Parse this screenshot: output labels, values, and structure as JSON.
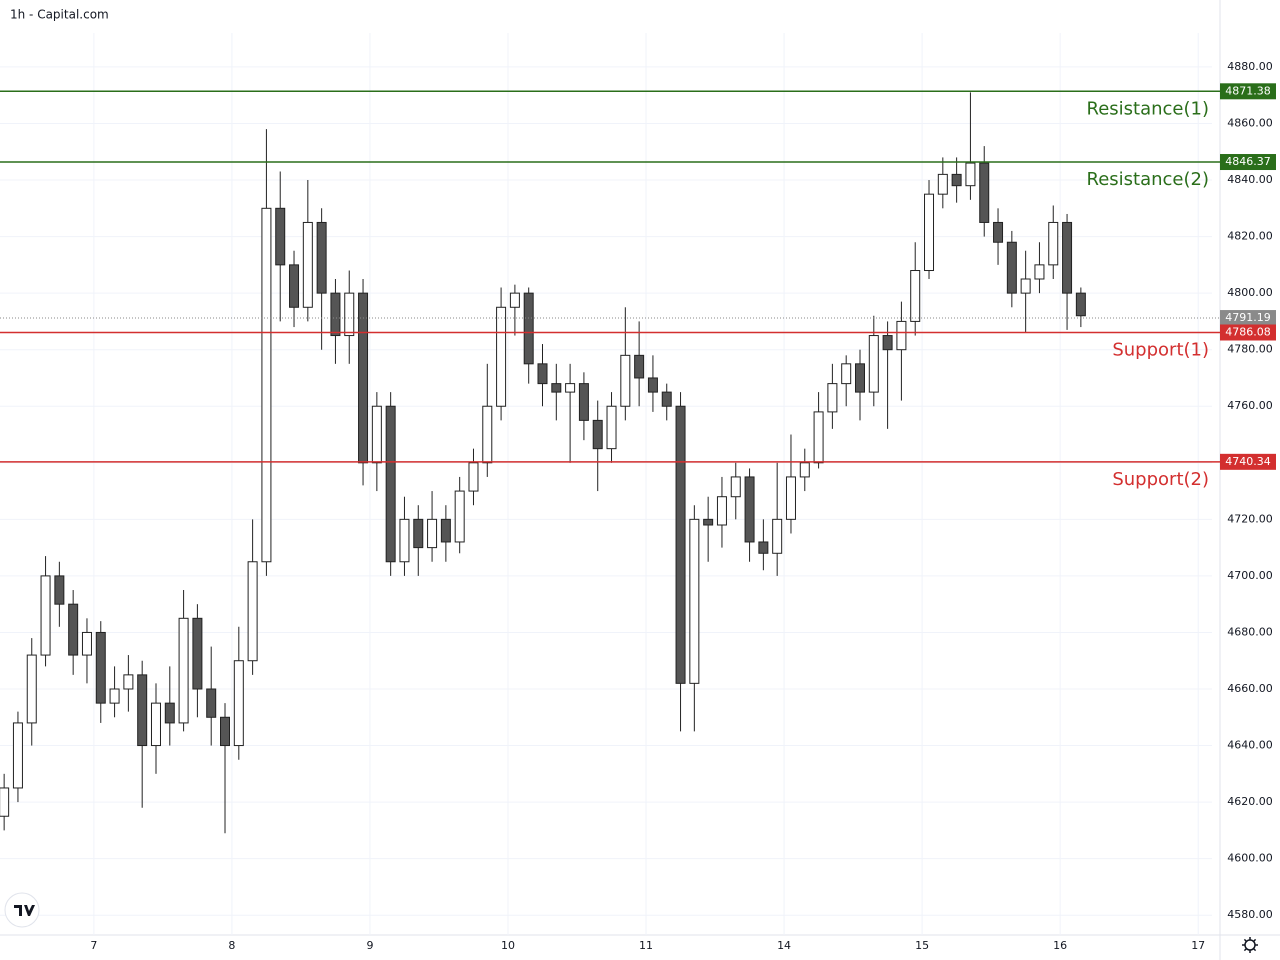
{
  "chart_data": {
    "type": "candlestick",
    "title": "1h - Capital.com",
    "x": [
      -0.65,
      -0.55,
      -0.45,
      -0.35,
      -0.25,
      -0.15,
      -0.05,
      0.05,
      0.15,
      0.25,
      0.35,
      0.45,
      0.55,
      0.65,
      0.75,
      0.85,
      0.95,
      1.05,
      1.15,
      1.25,
      1.35,
      1.45,
      1.55,
      1.65,
      1.75,
      1.85,
      1.95,
      2.05,
      2.15,
      2.25,
      2.35,
      2.45,
      2.55,
      2.65,
      2.75,
      2.85,
      2.95,
      3.05,
      3.15,
      3.25,
      3.35,
      3.45,
      3.55,
      3.65,
      3.75,
      3.85,
      3.95,
      4.05,
      4.15,
      4.25,
      4.35,
      4.45,
      4.55,
      4.65,
      4.75,
      4.85,
      4.95,
      5.05,
      5.15,
      5.25,
      5.35,
      5.45,
      5.55,
      5.65,
      5.75,
      5.85,
      5.95,
      6.05,
      6.15,
      6.25,
      6.35,
      6.45,
      6.55,
      6.65,
      6.75,
      6.85,
      6.95,
      7.05,
      7.15
    ],
    "open": [
      4615,
      4625,
      4648,
      4672,
      4700,
      4690,
      4672,
      4680,
      4655,
      4660,
      4665,
      4640,
      4655,
      4648,
      4685,
      4660,
      4650,
      4640,
      4670,
      4705,
      4830,
      4810,
      4795,
      4825,
      4800,
      4785,
      4800,
      4740,
      4760,
      4705,
      4720,
      4710,
      4720,
      4712,
      4730,
      4740,
      4760,
      4795,
      4800,
      4775,
      4768,
      4765,
      4768,
      4755,
      4745,
      4760,
      4778,
      4770,
      4765,
      4760,
      4662,
      4720,
      4718,
      4728,
      4735,
      4712,
      4708,
      4720,
      4735,
      4740,
      4758,
      4768,
      4775,
      4765,
      4785,
      4780,
      4790,
      4808,
      4835,
      4842,
      4838,
      4846,
      4825,
      4818,
      4800,
      4805,
      4810,
      4825,
      4800
    ],
    "high": [
      4630,
      4652,
      4678,
      4707,
      4705,
      4695,
      4685,
      4684,
      4668,
      4672,
      4670,
      4662,
      4668,
      4695,
      4690,
      4675,
      4655,
      4682,
      4720,
      4858,
      4843,
      4815,
      4840,
      4830,
      4805,
      4808,
      4805,
      4765,
      4765,
      4728,
      4725,
      4730,
      4725,
      4735,
      4745,
      4775,
      4802,
      4803,
      4802,
      4782,
      4775,
      4775,
      4772,
      4762,
      4765,
      4795,
      4790,
      4778,
      4768,
      4765,
      4725,
      4728,
      4735,
      4740,
      4738,
      4720,
      4740,
      4750,
      4745,
      4765,
      4775,
      4778,
      4780,
      4792,
      4790,
      4797,
      4818,
      4840,
      4848,
      4848,
      4871,
      4852,
      4830,
      4822,
      4815,
      4818,
      4831,
      4828,
      4802
    ],
    "low": [
      4610,
      4620,
      4640,
      4668,
      4682,
      4665,
      4662,
      4648,
      4650,
      4652,
      4618,
      4630,
      4640,
      4645,
      4650,
      4640,
      4609,
      4635,
      4665,
      4700,
      4790,
      4788,
      4790,
      4780,
      4775,
      4775,
      4732,
      4730,
      4700,
      4700,
      4700,
      4705,
      4705,
      4708,
      4725,
      4735,
      4755,
      4785,
      4768,
      4760,
      4755,
      4740,
      4748,
      4730,
      4740,
      4755,
      4760,
      4758,
      4755,
      4645,
      4645,
      4705,
      4710,
      4720,
      4705,
      4702,
      4700,
      4715,
      4730,
      4738,
      4752,
      4760,
      4755,
      4760,
      4752,
      4762,
      4785,
      4805,
      4830,
      4832,
      4833,
      4820,
      4810,
      4795,
      4786,
      4800,
      4805,
      4787,
      4788
    ],
    "close": [
      4625,
      4648,
      4672,
      4700,
      4690,
      4672,
      4680,
      4655,
      4660,
      4665,
      4640,
      4655,
      4648,
      4685,
      4660,
      4650,
      4640,
      4670,
      4705,
      4830,
      4810,
      4795,
      4825,
      4800,
      4785,
      4800,
      4740,
      4760,
      4705,
      4720,
      4710,
      4720,
      4712,
      4730,
      4740,
      4760,
      4795,
      4800,
      4775,
      4768,
      4765,
      4768,
      4755,
      4745,
      4760,
      4778,
      4770,
      4765,
      4760,
      4662,
      4720,
      4718,
      4728,
      4735,
      4712,
      4708,
      4720,
      4735,
      4740,
      4758,
      4768,
      4775,
      4765,
      4785,
      4780,
      4790,
      4808,
      4835,
      4842,
      4838,
      4846,
      4825,
      4818,
      4800,
      4805,
      4810,
      4825,
      4800,
      4792
    ],
    "up_color": "#ffffff",
    "down_color": "#555555",
    "edge_color": "#222222",
    "xlim": [
      -0.68,
      8.1
    ],
    "ylim": [
      4573,
      4892
    ],
    "xticks": [
      {
        "value": 0,
        "label": "7"
      },
      {
        "value": 1,
        "label": "8"
      },
      {
        "value": 2,
        "label": "9"
      },
      {
        "value": 3,
        "label": "10"
      },
      {
        "value": 4,
        "label": "11"
      },
      {
        "value": 5,
        "label": "14"
      },
      {
        "value": 6,
        "label": "15"
      },
      {
        "value": 7,
        "label": "16"
      },
      {
        "value": 8,
        "label": "17"
      }
    ],
    "yticks": [
      {
        "value": 4580,
        "label": "4580.00"
      },
      {
        "value": 4600,
        "label": "4600.00"
      },
      {
        "value": 4620,
        "label": "4620.00"
      },
      {
        "value": 4640,
        "label": "4640.00"
      },
      {
        "value": 4660,
        "label": "4660.00"
      },
      {
        "value": 4680,
        "label": "4680.00"
      },
      {
        "value": 4700,
        "label": "4700.00"
      },
      {
        "value": 4720,
        "label": "4720.00"
      },
      {
        "value": 4740,
        "label": "4740.00"
      },
      {
        "value": 4760,
        "label": "4760.00"
      },
      {
        "value": 4780,
        "label": "4780.00"
      },
      {
        "value": 4800,
        "label": "4800.00"
      },
      {
        "value": 4820,
        "label": "4820.00"
      },
      {
        "value": 4840,
        "label": "4840.00"
      },
      {
        "value": 4860,
        "label": "4860.00"
      },
      {
        "value": 4880,
        "label": "4880.00"
      }
    ],
    "grid": true,
    "levels": [
      {
        "name": "Resistance(1)",
        "value": 4871.38,
        "color": "#2a6e1a"
      },
      {
        "name": "Resistance(2)",
        "value": 4846.37,
        "color": "#2a6e1a"
      },
      {
        "name": "Support(1)",
        "value": 4786.08,
        "color": "#d32f2f"
      },
      {
        "name": "Support(2)",
        "value": 4740.34,
        "color": "#d32f2f"
      }
    ],
    "last_price": {
      "value": 4791.19,
      "color": "#8a8a8a"
    }
  }
}
